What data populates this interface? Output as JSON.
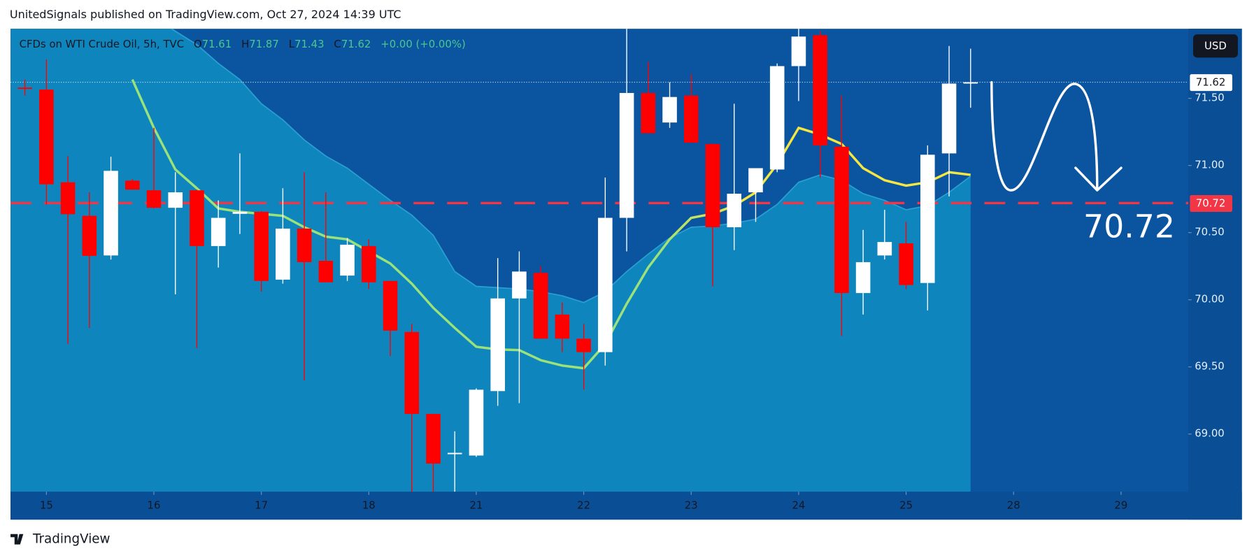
{
  "chart_data": {
    "type": "candlestick",
    "title": "UnitedSignals published on TradingView.com, Oct 27, 2024 14:39 UTC",
    "symbol": "CFDs on WTI Crude Oil, 5h, TVC",
    "ohlc_letters": [
      "O",
      "H",
      "L",
      "C"
    ],
    "change": "+0.00 (+0.00%)",
    "currency": "USD",
    "brand": "TradingView",
    "up_color": "#ffffff",
    "down_color": "#ff0000",
    "level": 70.72,
    "level_color": "#f23645",
    "open": [
      71.58,
      71.565,
      70.875,
      70.625,
      70.33,
      70.887,
      70.815,
      70.685,
      70.815,
      70.4,
      70.64,
      70.655,
      70.15,
      70.53,
      70.29,
      70.18,
      70.4,
      70.14,
      69.76,
      69.15,
      68.85,
      68.84,
      69.32,
      70.01,
      70.2,
      69.89,
      69.71,
      69.61,
      70.61,
      71.54,
      71.32,
      71.52,
      71.16,
      70.54,
      70.8,
      70.97,
      71.74,
      71.97,
      71.14,
      70.05,
      70.33,
      70.42,
      70.125,
      71.09,
      71.61
    ],
    "high": [
      71.64,
      71.79,
      71.07,
      70.8,
      71.065,
      70.9,
      71.28,
      70.95,
      70.82,
      70.74,
      71.09,
      70.66,
      70.83,
      70.95,
      70.8,
      70.46,
      70.45,
      70.14,
      69.82,
      69.15,
      69.02,
      69.34,
      70.31,
      70.36,
      70.25,
      69.98,
      69.82,
      70.91,
      72.02,
      71.77,
      71.62,
      71.68,
      71.16,
      71.46,
      70.98,
      71.76,
      72.02,
      72.0,
      71.52,
      70.52,
      70.67,
      70.58,
      71.15,
      71.89,
      71.87
    ],
    "low": [
      71.52,
      70.71,
      69.67,
      69.79,
      70.3,
      70.82,
      70.68,
      70.04,
      69.64,
      70.24,
      70.49,
      70.06,
      70.12,
      69.4,
      70.13,
      70.14,
      70.08,
      69.58,
      68.55,
      68.55,
      68.55,
      68.83,
      69.21,
      69.23,
      69.71,
      69.61,
      69.33,
      69.51,
      70.36,
      71.24,
      71.28,
      71.17,
      70.1,
      70.37,
      70.58,
      70.95,
      71.48,
      70.91,
      69.73,
      69.89,
      70.3,
      70.08,
      69.92,
      70.77,
      71.43
    ],
    "close": [
      71.57,
      70.86,
      70.637,
      70.327,
      70.96,
      70.82,
      70.685,
      70.8,
      70.4,
      70.61,
      70.655,
      70.14,
      70.53,
      70.28,
      70.13,
      70.41,
      70.13,
      69.77,
      69.15,
      68.78,
      68.86,
      69.33,
      70.01,
      70.21,
      69.71,
      69.71,
      69.61,
      70.61,
      71.54,
      71.24,
      71.51,
      71.17,
      70.54,
      70.79,
      70.98,
      71.74,
      71.96,
      71.15,
      70.05,
      70.28,
      70.43,
      70.11,
      71.08,
      71.61,
      71.62
    ],
    "ma": {
      "colors": [
        "#9be27a",
        "#f5e642"
      ],
      "values": [
        null,
        null,
        null,
        null,
        null,
        71.64,
        71.28,
        70.97,
        70.83,
        70.68,
        70.655,
        70.64,
        70.625,
        70.54,
        70.47,
        70.45,
        70.36,
        70.27,
        70.12,
        69.94,
        69.79,
        69.65,
        69.63,
        69.625,
        69.55,
        69.51,
        69.49,
        69.67,
        69.97,
        70.24,
        70.45,
        70.61,
        70.64,
        70.7,
        70.8,
        71.01,
        71.28,
        71.23,
        71.16,
        70.98,
        70.89,
        70.85,
        70.875,
        70.95,
        70.93
      ]
    },
    "band": {
      "color": "#0e86bd",
      "values": [
        72.3,
        72.25,
        72.2,
        72.15,
        72.1,
        72.2,
        72.1,
        72.0,
        71.9,
        71.76,
        71.64,
        71.46,
        71.34,
        71.19,
        71.07,
        70.98,
        70.86,
        70.74,
        70.63,
        70.48,
        70.21,
        70.1,
        70.09,
        70.08,
        70.06,
        70.03,
        69.98,
        70.06,
        70.21,
        70.34,
        70.46,
        70.54,
        70.55,
        70.57,
        70.6,
        70.71,
        70.875,
        70.93,
        70.89,
        70.79,
        70.74,
        70.67,
        70.7,
        70.8,
        70.92
      ]
    },
    "xlim": [
      -0.67,
      54.13
    ],
    "ylim": [
      68.571,
      72.018
    ],
    "xticks": [
      {
        "value": 1,
        "label": "15"
      },
      {
        "value": 6,
        "label": "16"
      },
      {
        "value": 11,
        "label": "17"
      },
      {
        "value": 16,
        "label": "18"
      },
      {
        "value": 21,
        "label": "21"
      },
      {
        "value": 26,
        "label": "22"
      },
      {
        "value": 31,
        "label": "23"
      },
      {
        "value": 36,
        "label": "24"
      },
      {
        "value": 41,
        "label": "25"
      },
      {
        "value": 46,
        "label": "28"
      },
      {
        "value": 51,
        "label": "29"
      }
    ],
    "yticks": [
      {
        "value": 69.0,
        "label": "69.00"
      },
      {
        "value": 69.5,
        "label": "69.50"
      },
      {
        "value": 70.0,
        "label": "70.00"
      },
      {
        "value": 70.5,
        "label": "70.50"
      },
      {
        "value": 71.0,
        "label": "71.00"
      },
      {
        "value": 71.5,
        "label": "71.50"
      }
    ]
  }
}
